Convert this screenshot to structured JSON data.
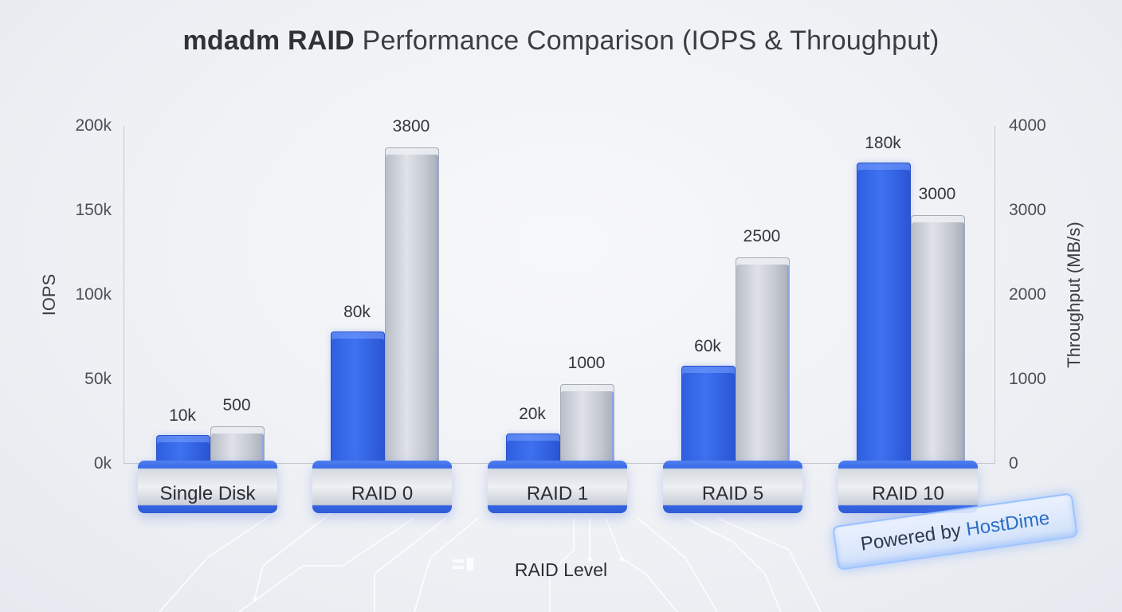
{
  "title": {
    "bold": "mdadm RAID",
    "rest": "Performance Comparison (IOPS & Throughput)"
  },
  "axes": {
    "left_title": "IOPS",
    "right_title": "Throughput (MB/s)",
    "x_title": "RAID Level",
    "left_ticks": [
      "0k",
      "50k",
      "100k",
      "150k",
      "200k"
    ],
    "right_ticks": [
      "0",
      "1000",
      "2000",
      "3000",
      "4000"
    ]
  },
  "groups": [
    {
      "label": "Single Disk",
      "iops": 10000,
      "iops_label": "10k",
      "throughput": 500,
      "throughput_label": "500"
    },
    {
      "label": "RAID 0",
      "iops": 80000,
      "iops_label": "80k",
      "throughput": 3800,
      "throughput_label": "3800"
    },
    {
      "label": "RAID 1",
      "iops": 20000,
      "iops_label": "20k",
      "throughput": 1000,
      "throughput_label": "1000"
    },
    {
      "label": "RAID 5",
      "iops": 60000,
      "iops_label": "60k",
      "throughput": 2500,
      "throughput_label": "2500"
    },
    {
      "label": "RAID 10",
      "iops": 180000,
      "iops_label": "180k",
      "throughput": 3000,
      "throughput_label": "3000"
    }
  ],
  "badge": {
    "prefix": "Powered by",
    "brand": "HostDime"
  },
  "colors": {
    "iops": "#3366e8",
    "throughput": "#c9cdd5",
    "background": "#eef0f4",
    "brand": "#2a6fc4"
  },
  "chart_data": {
    "type": "bar",
    "title": "mdadm RAID Performance Comparison (IOPS & Throughput)",
    "xlabel": "RAID Level",
    "ylabel": "IOPS",
    "y2label": "Throughput (MB/s)",
    "categories": [
      "Single Disk",
      "RAID 0",
      "RAID 1",
      "RAID 5",
      "RAID 10"
    ],
    "series": [
      {
        "name": "IOPS",
        "axis": "left",
        "values": [
          10000,
          80000,
          20000,
          60000,
          180000
        ]
      },
      {
        "name": "Throughput (MB/s)",
        "axis": "right",
        "values": [
          500,
          3800,
          1000,
          2500,
          3000
        ]
      }
    ],
    "ylim": [
      0,
      200000
    ],
    "y2lim": [
      0,
      4000
    ],
    "yticks": [
      "0k",
      "50k",
      "100k",
      "150k",
      "200k"
    ],
    "y2ticks": [
      "0",
      "1000",
      "2000",
      "3000",
      "4000"
    ],
    "grid": false,
    "legend": "none"
  }
}
